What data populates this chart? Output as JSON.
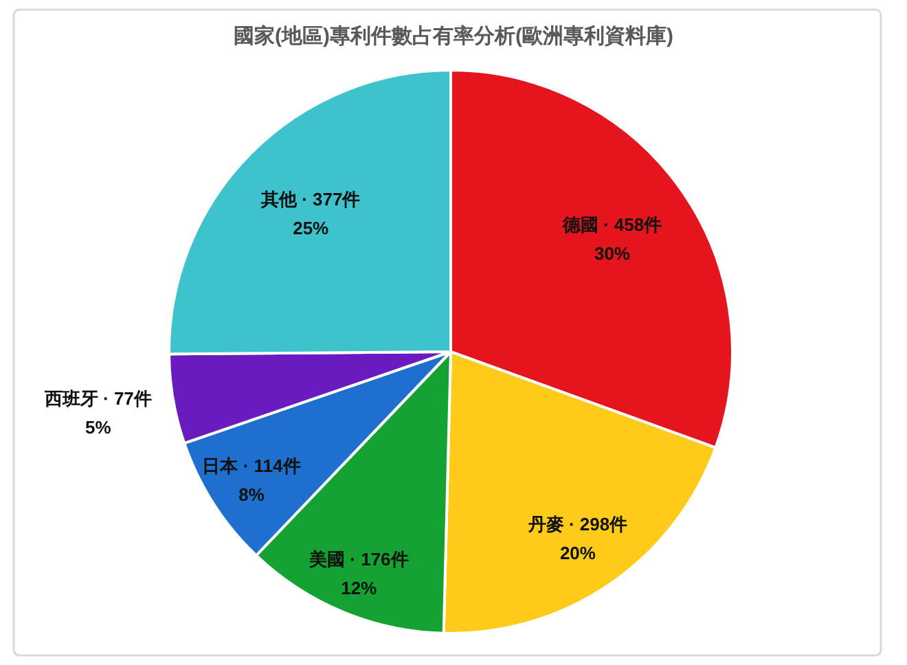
{
  "chart_data": {
    "type": "pie",
    "title": "國家(地區)專利件數占有率分析(歐洲專利資料庫)",
    "categories": [
      "德國",
      "丹麥",
      "美國",
      "日本",
      "西班牙",
      "其他"
    ],
    "values": [
      458,
      298,
      176,
      114,
      77,
      377
    ],
    "colors": [
      "#e5151e",
      "#fdcb18",
      "#14a333",
      "#1f6fce",
      "#6a1bbf",
      "#3ec2cc"
    ],
    "value_labels": [
      "· 458件\n30%",
      "· 298件\n20%",
      "· 176件\n12%",
      "· 114件\n8%",
      "· 77件\n5%",
      "· 377件\n25%"
    ]
  }
}
